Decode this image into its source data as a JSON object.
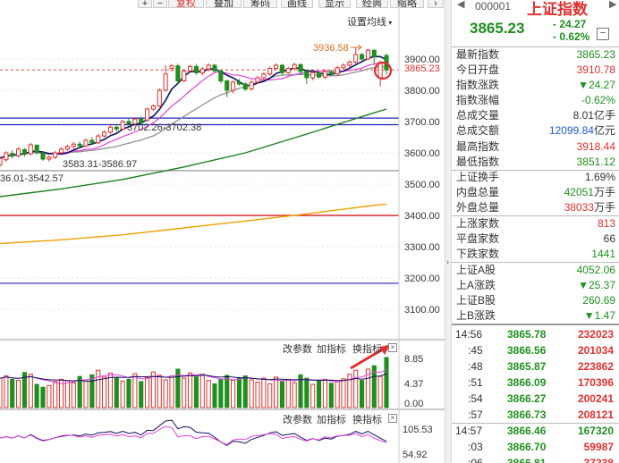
{
  "toolbar": {
    "buttons": [
      "+",
      "−",
      "复权",
      "叠加",
      "筹码",
      "画线",
      "显示",
      "经典",
      "缩略"
    ],
    "ma_settings": "设置均线"
  },
  "price_axis": {
    "ticks": [
      "3900.00",
      "3800.00",
      "3700.00",
      "3600.00",
      "3500.00",
      "3400.00",
      "3300.00",
      "3200.00",
      "3100.00"
    ],
    "current": "3865.23"
  },
  "annotations": {
    "high": "3936.58",
    "gap1": "3702.26-3702.38",
    "gap2": "3583.31-3586.97",
    "gap3": "36.01-3542.57"
  },
  "volume_panel": {
    "buttons": [
      "改参数",
      "加指标",
      "换指标"
    ],
    "ticks": [
      "8.85",
      "4.37",
      "0.00"
    ]
  },
  "indicator_panel": {
    "buttons": [
      "改参数",
      "加指标",
      "换指标"
    ],
    "ticks": [
      "105.53",
      "54.92"
    ]
  },
  "panel": {
    "code": "000001",
    "name": "上证指数",
    "price": "3865.23",
    "change": "- 24.27",
    "change_pct": "- 0.62%",
    "toggle": "−",
    "stats": [
      {
        "label": "最新指数",
        "value": "3865.23",
        "color": "green"
      },
      {
        "label": "今日开盘",
        "value": "3910.78",
        "color": "red"
      },
      {
        "label": "指数涨跌",
        "value": "▼24.27",
        "color": "green"
      },
      {
        "label": "指数涨幅",
        "value": "-0.62%",
        "color": "green"
      },
      {
        "label": "总成交量",
        "value": "8.01亿手",
        "color": "dark"
      },
      {
        "label": "总成交额",
        "value": "12099.84",
        "unit": "亿元",
        "color": "blue"
      },
      {
        "label": "最高指数",
        "value": "3918.44",
        "color": "red"
      },
      {
        "label": "最低指数",
        "value": "3851.12",
        "color": "green"
      },
      {
        "label": "上证换手",
        "value": "1.69%",
        "color": "dark"
      },
      {
        "label": "内盘总量",
        "value": "42051",
        "unit": "万手",
        "color": "green"
      },
      {
        "label": "外盘总量",
        "value": "38033",
        "unit": "万手",
        "color": "red"
      },
      {
        "label": "上涨家数",
        "value": "813",
        "color": "red"
      },
      {
        "label": "平盘家数",
        "value": "66",
        "color": "dark"
      },
      {
        "label": "下跌家数",
        "value": "1441",
        "color": "green"
      },
      {
        "label": "上证A股",
        "value": "4052.06",
        "color": "green"
      },
      {
        "label": "上A涨跌",
        "value": "▼25.37",
        "color": "green"
      },
      {
        "label": "上证B股",
        "value": "260.69",
        "color": "green"
      },
      {
        "label": "上B涨跌",
        "value": "▼1.47",
        "color": "green"
      }
    ],
    "ticks": [
      {
        "time": "14:56",
        "price": "3865.78",
        "vol": "232023",
        "vcolor": "red"
      },
      {
        "time": ":45",
        "price": "3866.56",
        "vol": "201034",
        "vcolor": "red"
      },
      {
        "time": ":48",
        "price": "3865.87",
        "vol": "223862",
        "vcolor": "red"
      },
      {
        "time": ":51",
        "price": "3866.09",
        "vol": "170396",
        "vcolor": "red"
      },
      {
        "time": ":54",
        "price": "3866.27",
        "vol": "200241",
        "vcolor": "red"
      },
      {
        "time": ":57",
        "price": "3866.73",
        "vol": "208121",
        "vcolor": "red"
      },
      {
        "time": "14:57",
        "price": "3866.46",
        "vol": "167320",
        "vcolor": "green"
      },
      {
        "time": ":03",
        "price": "3866.70",
        "vol": "59987",
        "vcolor": "red"
      },
      {
        "time": ":06",
        "price": "3866.81",
        "vol": "37238",
        "vcolor": "red"
      }
    ]
  },
  "colors": {
    "up": "#e0302e",
    "down": "#1f8f1f",
    "ma5": "#101060",
    "ma10": "#e040e0",
    "ma20": "#909090",
    "ma60": "#1a7f1a",
    "ma120": "#f0a000"
  },
  "chart_data": {
    "type": "candlestick",
    "price_range": [
      3050,
      3960
    ],
    "horizontal_lines": [
      {
        "value": 3711,
        "color": "#2020c0"
      },
      {
        "value": 3690,
        "color": "#2020c0"
      },
      {
        "value": 3400,
        "color": "#cc0000"
      },
      {
        "value": 3183,
        "color": "#2020c0"
      },
      {
        "value": 3543,
        "color": "#888888"
      }
    ],
    "candles": [
      {
        "o": 3562,
        "c": 3582,
        "h": 3590,
        "l": 3555
      },
      {
        "o": 3578,
        "c": 3600,
        "h": 3605,
        "l": 3572
      },
      {
        "o": 3598,
        "c": 3590,
        "h": 3608,
        "l": 3582
      },
      {
        "o": 3590,
        "c": 3612,
        "h": 3618,
        "l": 3585
      },
      {
        "o": 3610,
        "c": 3596,
        "h": 3615,
        "l": 3588
      },
      {
        "o": 3597,
        "c": 3626,
        "h": 3632,
        "l": 3592
      },
      {
        "o": 3624,
        "c": 3600,
        "h": 3628,
        "l": 3595
      },
      {
        "o": 3600,
        "c": 3580,
        "h": 3605,
        "l": 3575
      },
      {
        "o": 3580,
        "c": 3586,
        "h": 3592,
        "l": 3572
      },
      {
        "o": 3586,
        "c": 3600,
        "h": 3606,
        "l": 3580
      },
      {
        "o": 3600,
        "c": 3612,
        "h": 3618,
        "l": 3596
      },
      {
        "o": 3612,
        "c": 3620,
        "h": 3626,
        "l": 3606
      },
      {
        "o": 3620,
        "c": 3628,
        "h": 3634,
        "l": 3614
      },
      {
        "o": 3628,
        "c": 3622,
        "h": 3636,
        "l": 3616
      },
      {
        "o": 3622,
        "c": 3640,
        "h": 3646,
        "l": 3618
      },
      {
        "o": 3640,
        "c": 3632,
        "h": 3650,
        "l": 3626
      },
      {
        "o": 3632,
        "c": 3654,
        "h": 3660,
        "l": 3628
      },
      {
        "o": 3654,
        "c": 3666,
        "h": 3672,
        "l": 3648
      },
      {
        "o": 3666,
        "c": 3682,
        "h": 3690,
        "l": 3660
      },
      {
        "o": 3682,
        "c": 3676,
        "h": 3692,
        "l": 3668
      },
      {
        "o": 3676,
        "c": 3700,
        "h": 3706,
        "l": 3672
      },
      {
        "o": 3700,
        "c": 3692,
        "h": 3712,
        "l": 3688
      },
      {
        "o": 3692,
        "c": 3708,
        "h": 3714,
        "l": 3686
      },
      {
        "o": 3708,
        "c": 3696,
        "h": 3716,
        "l": 3690
      },
      {
        "o": 3705,
        "c": 3740,
        "h": 3745,
        "l": 3700
      },
      {
        "o": 3740,
        "c": 3750,
        "h": 3756,
        "l": 3734
      },
      {
        "o": 3750,
        "c": 3800,
        "h": 3806,
        "l": 3746
      },
      {
        "o": 3800,
        "c": 3852,
        "h": 3880,
        "l": 3795
      },
      {
        "o": 3870,
        "c": 3878,
        "h": 3884,
        "l": 3860
      },
      {
        "o": 3878,
        "c": 3830,
        "h": 3885,
        "l": 3822
      },
      {
        "o": 3830,
        "c": 3862,
        "h": 3868,
        "l": 3826
      },
      {
        "o": 3862,
        "c": 3876,
        "h": 3882,
        "l": 3856
      },
      {
        "o": 3876,
        "c": 3856,
        "h": 3884,
        "l": 3850
      },
      {
        "o": 3856,
        "c": 3868,
        "h": 3874,
        "l": 3848
      },
      {
        "o": 3868,
        "c": 3880,
        "h": 3886,
        "l": 3860
      },
      {
        "o": 3880,
        "c": 3862,
        "h": 3884,
        "l": 3856
      },
      {
        "o": 3862,
        "c": 3830,
        "h": 3866,
        "l": 3822
      },
      {
        "o": 3830,
        "c": 3800,
        "h": 3834,
        "l": 3778
      },
      {
        "o": 3800,
        "c": 3826,
        "h": 3832,
        "l": 3790
      },
      {
        "o": 3826,
        "c": 3820,
        "h": 3836,
        "l": 3814
      },
      {
        "o": 3820,
        "c": 3804,
        "h": 3826,
        "l": 3798
      },
      {
        "o": 3804,
        "c": 3826,
        "h": 3832,
        "l": 3800
      },
      {
        "o": 3826,
        "c": 3840,
        "h": 3846,
        "l": 3820
      },
      {
        "o": 3840,
        "c": 3852,
        "h": 3858,
        "l": 3836
      },
      {
        "o": 3852,
        "c": 3870,
        "h": 3876,
        "l": 3846
      },
      {
        "o": 3870,
        "c": 3880,
        "h": 3886,
        "l": 3864
      },
      {
        "o": 3880,
        "c": 3856,
        "h": 3884,
        "l": 3850
      },
      {
        "o": 3856,
        "c": 3870,
        "h": 3874,
        "l": 3852
      },
      {
        "o": 3870,
        "c": 3882,
        "h": 3888,
        "l": 3864
      },
      {
        "o": 3882,
        "c": 3860,
        "h": 3886,
        "l": 3850
      },
      {
        "o": 3860,
        "c": 3840,
        "h": 3864,
        "l": 3820
      },
      {
        "o": 3840,
        "c": 3856,
        "h": 3862,
        "l": 3832
      },
      {
        "o": 3856,
        "c": 3842,
        "h": 3860,
        "l": 3838
      },
      {
        "o": 3842,
        "c": 3860,
        "h": 3866,
        "l": 3836
      },
      {
        "o": 3860,
        "c": 3852,
        "h": 3866,
        "l": 3846
      },
      {
        "o": 3852,
        "c": 3872,
        "h": 3878,
        "l": 3846
      },
      {
        "o": 3872,
        "c": 3880,
        "h": 3886,
        "l": 3866
      },
      {
        "o": 3880,
        "c": 3890,
        "h": 3896,
        "l": 3874
      },
      {
        "o": 3890,
        "c": 3914,
        "h": 3936,
        "l": 3884
      },
      {
        "o": 3914,
        "c": 3900,
        "h": 3920,
        "l": 3894
      },
      {
        "o": 3900,
        "c": 3928,
        "h": 3932,
        "l": 3896
      },
      {
        "o": 3928,
        "c": 3908,
        "h": 3930,
        "l": 3880
      },
      {
        "o": 3840,
        "c": 3888,
        "h": 3894,
        "l": 3812
      },
      {
        "o": 3911,
        "c": 3865,
        "h": 3918,
        "l": 3851
      }
    ],
    "ma_lines": [
      {
        "name": "MA60",
        "color": "#1a7f1a",
        "points": [
          [
            0,
            3460
          ],
          [
            10,
            3485
          ],
          [
            20,
            3515
          ],
          [
            30,
            3555
          ],
          [
            40,
            3600
          ],
          [
            50,
            3660
          ],
          [
            60,
            3722
          ],
          [
            63,
            3740
          ]
        ]
      },
      {
        "name": "MA120",
        "color": "#f0a000",
        "points": [
          [
            0,
            3310
          ],
          [
            10,
            3322
          ],
          [
            20,
            3338
          ],
          [
            30,
            3360
          ],
          [
            40,
            3382
          ],
          [
            50,
            3405
          ],
          [
            60,
            3430
          ],
          [
            63,
            3436
          ]
        ]
      }
    ],
    "volume": {
      "max": 8.85,
      "values": [
        5.2,
        5.6,
        5.0,
        4.8,
        6.2,
        5.9,
        4.1,
        3.6,
        3.9,
        4.6,
        5.0,
        4.8,
        4.4,
        5.5,
        4.9,
        5.8,
        6.6,
        5.4,
        6.1,
        5.2,
        4.7,
        5.0,
        6.0,
        4.6,
        5.3,
        6.3,
        5.7,
        4.9,
        5.6,
        6.8,
        5.2,
        6.1,
        5.4,
        5.9,
        4.8,
        4.2,
        5.0,
        5.7,
        4.8,
        5.3,
        5.6,
        4.9,
        4.5,
        5.2,
        4.2,
        5.4,
        4.6,
        5.0,
        4.4,
        5.8,
        5.2,
        4.1,
        4.7,
        5.0,
        4.3,
        4.6,
        5.1,
        5.9,
        6.6,
        4.8,
        6.8,
        7.4,
        5.5,
        8.85
      ],
      "up": [
        1,
        1,
        0,
        1,
        0,
        1,
        0,
        0,
        1,
        1,
        1,
        1,
        1,
        0,
        1,
        0,
        1,
        1,
        1,
        0,
        1,
        0,
        1,
        0,
        1,
        1,
        1,
        1,
        1,
        0,
        1,
        1,
        0,
        1,
        1,
        0,
        0,
        0,
        1,
        0,
        0,
        1,
        1,
        1,
        1,
        1,
        0,
        1,
        1,
        0,
        0,
        1,
        0,
        1,
        0,
        1,
        1,
        1,
        1,
        0,
        1,
        0,
        1,
        0
      ]
    }
  }
}
